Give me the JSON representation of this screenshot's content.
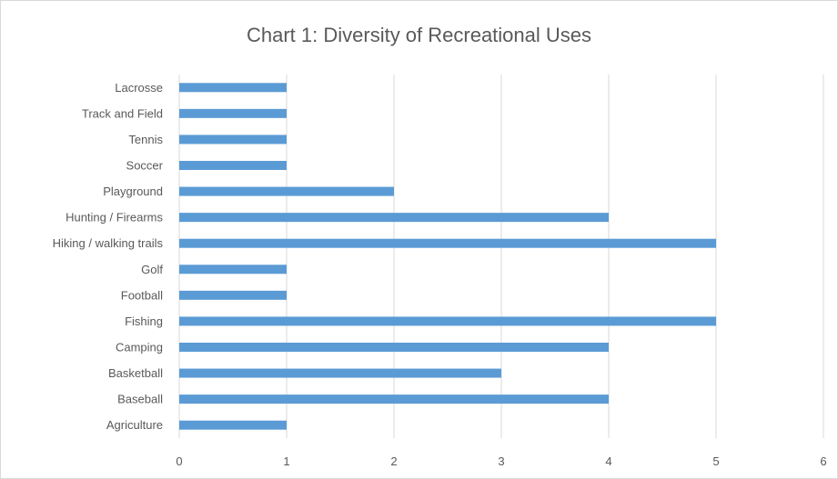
{
  "chart_data": {
    "type": "bar",
    "orientation": "horizontal",
    "title": "Chart 1: Diversity of Recreational Uses",
    "xlabel": "",
    "ylabel": "",
    "categories": [
      "Lacrosse",
      "Track and Field",
      "Tennis",
      "Soccer",
      "Playground",
      "Hunting / Firearms",
      "Hiking / walking trails",
      "Golf",
      "Football",
      "Fishing",
      "Camping",
      "Basketball",
      "Baseball",
      "Agriculture"
    ],
    "values": [
      1,
      1,
      1,
      1,
      2,
      4,
      5,
      1,
      1,
      5,
      4,
      3,
      4,
      1
    ],
    "xlim": [
      0,
      6
    ],
    "xticks": [
      0,
      1,
      2,
      3,
      4,
      5,
      6
    ],
    "grid": "vertical",
    "legend": "none",
    "bar_color": "#5b9bd5",
    "grid_color": "#d9d9d9"
  }
}
